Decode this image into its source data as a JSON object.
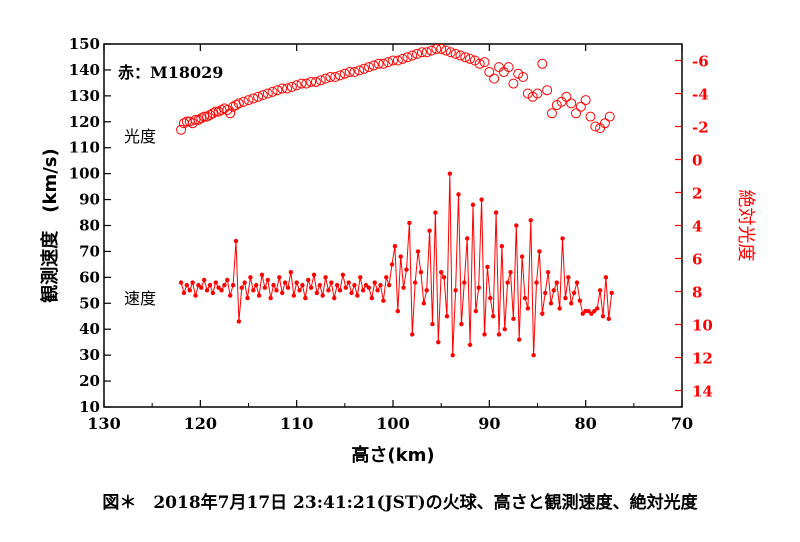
{
  "chart_data": {
    "type": "scatter",
    "xlabel": "高さ(km)",
    "ylabel": "観測速度　(km/s)",
    "y2label": "絶対光度",
    "xlim": [
      130,
      70
    ],
    "ylim": [
      10,
      150
    ],
    "y2lim": [
      15,
      -7
    ],
    "x_ticks": [
      "130",
      "120",
      "110",
      "100",
      "90",
      "80",
      "70"
    ],
    "y_ticks": [
      "10",
      "20",
      "30",
      "40",
      "50",
      "60",
      "70",
      "80",
      "90",
      "100",
      "110",
      "120",
      "130",
      "140",
      "150"
    ],
    "y2_ticks": [
      "-6",
      "-4",
      "-2",
      "0",
      "2",
      "4",
      "6",
      "8",
      "10",
      "12",
      "14"
    ],
    "annotations": {
      "object": "赤：M18029",
      "magnitude_series": "光度",
      "velocity_series": "速度"
    },
    "colors": {
      "data": "#ff0000",
      "axis": "#000000",
      "right_axis": "#ff0000"
    },
    "series": [
      {
        "name": "光度",
        "axis": "right",
        "marker": "open-circle",
        "x": [
          122.0,
          121.7,
          121.4,
          121.1,
          120.8,
          120.5,
          120.2,
          119.9,
          119.6,
          119.3,
          119.0,
          118.7,
          118.4,
          118.1,
          117.8,
          117.5,
          117.2,
          116.9,
          116.6,
          116.3,
          116.0,
          115.5,
          115.0,
          114.5,
          114.0,
          113.5,
          113.0,
          112.5,
          112.0,
          111.5,
          111.0,
          110.5,
          110.0,
          109.5,
          109.0,
          108.5,
          108.0,
          107.5,
          107.0,
          106.5,
          106.0,
          105.5,
          105.0,
          104.5,
          104.0,
          103.5,
          103.0,
          102.5,
          102.0,
          101.5,
          101.0,
          100.5,
          100.0,
          99.5,
          99.0,
          98.5,
          98.0,
          97.5,
          97.0,
          96.5,
          96.0,
          95.5,
          95.0,
          94.5,
          94.0,
          93.5,
          93.0,
          92.5,
          92.0,
          91.5,
          91.0,
          90.5,
          90.0,
          89.5,
          89.0,
          88.5,
          88.0,
          87.5,
          87.0,
          86.5,
          86.0,
          85.5,
          85.0,
          84.5,
          84.0,
          83.5,
          83.0,
          82.5,
          82.0,
          81.5,
          81.0,
          80.5,
          80.0,
          79.5,
          79.0,
          78.5,
          78.0,
          77.5
        ],
        "y": [
          -1.8,
          -2.2,
          -2.3,
          -2.3,
          -2.2,
          -2.4,
          -2.4,
          -2.5,
          -2.6,
          -2.6,
          -2.7,
          -2.8,
          -2.9,
          -2.9,
          -3.0,
          -3.1,
          -3.0,
          -2.8,
          -3.2,
          -3.3,
          -3.4,
          -3.5,
          -3.6,
          -3.7,
          -3.8,
          -3.9,
          -4.0,
          -4.1,
          -4.2,
          -4.3,
          -4.3,
          -4.4,
          -4.5,
          -4.6,
          -4.6,
          -4.7,
          -4.7,
          -4.8,
          -4.9,
          -5.0,
          -5.0,
          -5.1,
          -5.2,
          -5.3,
          -5.3,
          -5.4,
          -5.5,
          -5.6,
          -5.7,
          -5.8,
          -5.8,
          -5.9,
          -6.0,
          -6.0,
          -6.1,
          -6.2,
          -6.3,
          -6.4,
          -6.5,
          -6.5,
          -6.6,
          -6.7,
          -6.7,
          -6.6,
          -6.5,
          -6.4,
          -6.3,
          -6.2,
          -6.1,
          -6.0,
          -5.8,
          -5.9,
          -5.3,
          -4.9,
          -5.6,
          -5.3,
          -5.6,
          -4.6,
          -5.2,
          -5.0,
          -4.0,
          -3.8,
          -4.0,
          -5.8,
          -4.2,
          -2.8,
          -3.3,
          -3.5,
          -3.8,
          -3.4,
          -2.8,
          -3.2,
          -3.6,
          -2.6,
          -2.0,
          -1.9,
          -2.2,
          -2.6
        ]
      },
      {
        "name": "速度",
        "axis": "left",
        "marker": "filled-dot",
        "x": [
          122.0,
          121.7,
          121.4,
          121.1,
          120.8,
          120.5,
          120.2,
          119.9,
          119.6,
          119.3,
          119.0,
          118.7,
          118.4,
          118.1,
          117.8,
          117.5,
          117.2,
          116.9,
          116.6,
          116.3,
          116.0,
          115.7,
          115.4,
          115.1,
          114.8,
          114.5,
          114.2,
          113.9,
          113.6,
          113.3,
          113.0,
          112.7,
          112.4,
          112.1,
          111.8,
          111.5,
          111.2,
          110.9,
          110.6,
          110.3,
          110.0,
          109.7,
          109.4,
          109.1,
          108.8,
          108.5,
          108.2,
          107.9,
          107.6,
          107.3,
          107.0,
          106.7,
          106.4,
          106.1,
          105.8,
          105.5,
          105.2,
          104.9,
          104.6,
          104.3,
          104.0,
          103.7,
          103.4,
          103.1,
          102.8,
          102.5,
          102.2,
          101.9,
          101.6,
          101.3,
          101.0,
          100.7,
          100.4,
          100.1,
          99.8,
          99.5,
          99.2,
          98.9,
          98.6,
          98.3,
          98.0,
          97.7,
          97.4,
          97.1,
          96.8,
          96.5,
          96.2,
          95.9,
          95.6,
          95.3,
          95.0,
          94.7,
          94.4,
          94.1,
          93.8,
          93.5,
          93.2,
          92.9,
          92.6,
          92.3,
          92.0,
          91.7,
          91.4,
          91.1,
          90.8,
          90.5,
          90.2,
          89.9,
          89.6,
          89.3,
          89.0,
          88.7,
          88.4,
          88.1,
          87.8,
          87.5,
          87.2,
          86.9,
          86.6,
          86.3,
          86.0,
          85.7,
          85.4,
          85.1,
          84.8,
          84.5,
          84.2,
          83.9,
          83.6,
          83.3,
          83.0,
          82.7,
          82.4,
          82.1,
          81.8,
          81.5,
          81.2,
          80.9,
          80.6,
          80.3,
          80.0,
          79.7,
          79.4,
          79.1,
          78.8,
          78.5,
          78.2,
          77.9,
          77.6,
          77.3
        ],
        "y": [
          58,
          54,
          57,
          55,
          58,
          53,
          57,
          56,
          59,
          55,
          57,
          54,
          58,
          56,
          55,
          57,
          59,
          53,
          57,
          74,
          43,
          56,
          58,
          52,
          60,
          55,
          57,
          53,
          61,
          56,
          59,
          52,
          57,
          55,
          60,
          54,
          58,
          56,
          62,
          53,
          58,
          55,
          57,
          52,
          59,
          56,
          61,
          54,
          57,
          53,
          60,
          55,
          58,
          52,
          57,
          55,
          61,
          56,
          58,
          54,
          57,
          53,
          60,
          55,
          57,
          56,
          52,
          58,
          55,
          57,
          51,
          60,
          57,
          65,
          72,
          47,
          68,
          56,
          63,
          81,
          38,
          58,
          70,
          62,
          50,
          55,
          78,
          42,
          85,
          35,
          62,
          60,
          45,
          100,
          30,
          55,
          92,
          42,
          58,
          75,
          34,
          88,
          47,
          56,
          90,
          38,
          64,
          52,
          45,
          85,
          38,
          72,
          40,
          58,
          62,
          44,
          80,
          36,
          68,
          52,
          48,
          82,
          30,
          58,
          70,
          46,
          54,
          62,
          50,
          55,
          58,
          48,
          75,
          52,
          60,
          50,
          54,
          58,
          51,
          46,
          47,
          47,
          46,
          47,
          48,
          55,
          45,
          60,
          44,
          54
        ]
      }
    ]
  },
  "caption": "図＊　2018年7月17日 23:41:21(JST)の火球、高さと観測速度、絶対光度"
}
